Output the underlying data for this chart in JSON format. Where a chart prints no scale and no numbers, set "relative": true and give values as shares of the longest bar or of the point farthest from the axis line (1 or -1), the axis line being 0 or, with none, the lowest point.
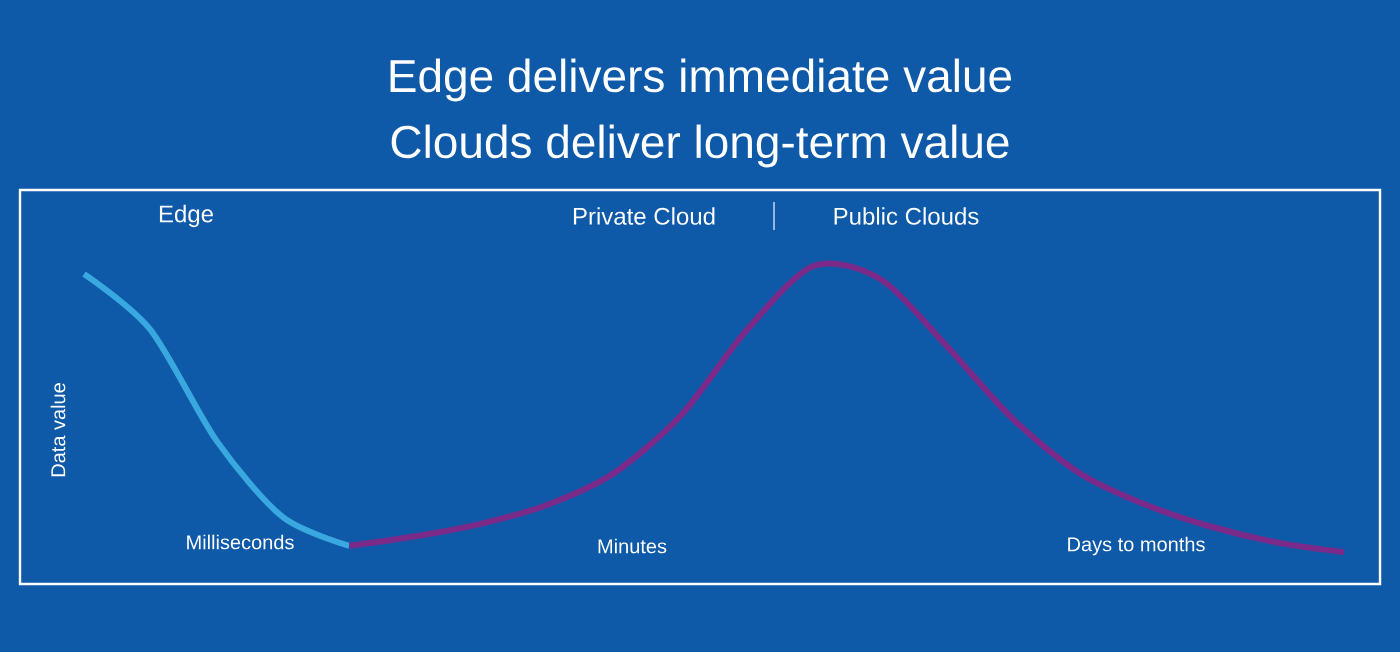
{
  "chart_data": {
    "type": "line",
    "relative": true,
    "title": "Edge delivers immediate value",
    "subtitle": "Clouds deliver long-term value",
    "ylabel": "Data value",
    "categories": [
      null,
      null,
      null,
      null,
      null,
      null,
      null,
      null,
      null,
      null,
      null,
      null,
      null,
      null,
      null,
      null,
      null,
      null,
      null,
      null
    ],
    "series": [
      {
        "color": "#3aa8e0",
        "values": [
          0.975,
          0.8,
          0.45,
          0.21,
          0.12,
          null,
          null,
          null,
          null,
          null,
          null,
          null,
          null,
          null,
          null,
          null,
          null,
          null,
          null,
          null
        ]
      },
      {
        "color": "#7b2a8a",
        "values": [
          null,
          null,
          null,
          null,
          0.12,
          0.15,
          0.19,
          0.25,
          0.35,
          0.53,
          0.8,
          1.0,
          0.96,
          0.75,
          0.52,
          0.35,
          0.25,
          0.18,
          0.13,
          0.1
        ]
      }
    ],
    "annotations": [
      "Edge",
      "Private Cloud",
      "Public Clouds",
      "Milliseconds",
      "Minutes",
      "Days to months"
    ],
    "marker": "none",
    "line_style": "solid"
  }
}
